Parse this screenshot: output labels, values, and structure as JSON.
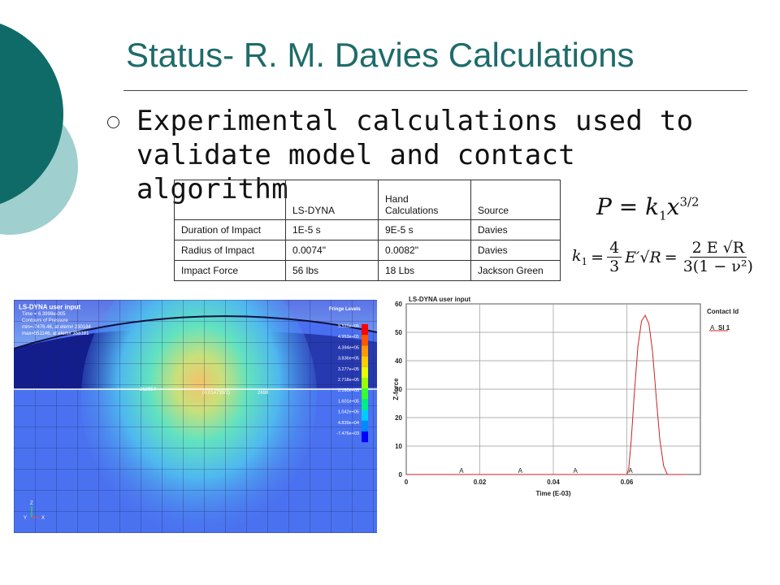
{
  "slide": {
    "title": "Status- R. M. Davies Calculations",
    "bullet": "Experimental calculations used to validate model and contact algorithm",
    "colors": {
      "title": "#1f6b6b",
      "deco_dark": "#0f6b68",
      "deco_light": "#9fcfcf"
    }
  },
  "table": {
    "headers": [
      "",
      "LS-DYNA",
      "Hand Calculations",
      "Source"
    ],
    "rows": [
      [
        "Duration of Impact",
        "1E-5 s",
        "9E-5 s",
        "Davies"
      ],
      [
        "Radius of Impact",
        "0.0074\"",
        "0.0082\"",
        "Davies"
      ],
      [
        "Impact Force",
        "56 lbs",
        "18 Lbs",
        "Jackson Green"
      ]
    ]
  },
  "equations": {
    "force": {
      "lhs": "P",
      "rhs": "k",
      "sub": "1",
      "var": "x",
      "exp": "3/2"
    },
    "k1": {
      "lhs": "k",
      "sub": "1",
      "frac1_num": "4",
      "frac1_den": "3",
      "mid": "E′√R",
      "frac2_num": "2 E √R",
      "frac2_den": "3(1 − ν²)"
    }
  },
  "simulation": {
    "header_title": "LS-DYNA user input",
    "time": "Time = 6.3998e-005",
    "contours": "Contours of Pressure",
    "min": "min=-7476.46, at elem# 230184",
    "max": "max=551146, at elem# 358181",
    "fringe_title": "Fringe Levels",
    "fringe_levels": [
      "5.511e+05",
      "4.953e+05",
      "4.394e+05",
      "3.836e+05",
      "3.277e+05",
      "2.718e+05",
      "2.160e+05",
      "1.601e+05",
      "1.042e+05",
      "4.839e+04",
      "-7.476e+03"
    ],
    "fringe_colors": [
      "#ff0000",
      "#ff5500",
      "#ff9900",
      "#ffcc00",
      "#e8ff00",
      "#99ff00",
      "#33ff33",
      "#00ee88",
      "#00ccff",
      "#0088ff",
      "#0000ff"
    ],
    "node_labels": [
      "262954",
      "(0.014739/2)",
      "2698"
    ],
    "axis_labels": [
      "Z",
      "Y",
      "X"
    ]
  },
  "chart_data": {
    "type": "line",
    "title": "LS-DYNA user input",
    "xlabel": "Time (E-03)",
    "ylabel": "Z-force",
    "xlim": [
      0,
      0.08
    ],
    "ylim": [
      0,
      60
    ],
    "xticks": [
      0,
      0.02,
      0.04,
      0.06
    ],
    "yticks": [
      0,
      10,
      20,
      30,
      40,
      50,
      60
    ],
    "grid": true,
    "legend_title": "Contact Id",
    "legend_position": "top-right",
    "series": [
      {
        "name": "SI 1",
        "marker_label": "A",
        "color": "#cc2222",
        "x": [
          0,
          0.01,
          0.02,
          0.03,
          0.04,
          0.05,
          0.06,
          0.0605,
          0.0612,
          0.062,
          0.063,
          0.064,
          0.065,
          0.066,
          0.067,
          0.068,
          0.069,
          0.07,
          0.071,
          0.072,
          0.074,
          0.076
        ],
        "y": [
          0,
          0,
          0,
          0,
          0,
          0,
          0,
          2,
          12,
          28,
          45,
          54,
          56,
          53,
          43,
          27,
          12,
          3,
          0,
          0,
          0,
          0
        ]
      }
    ],
    "marker_x": [
      0.015,
      0.031,
      0.046,
      0.061
    ]
  }
}
